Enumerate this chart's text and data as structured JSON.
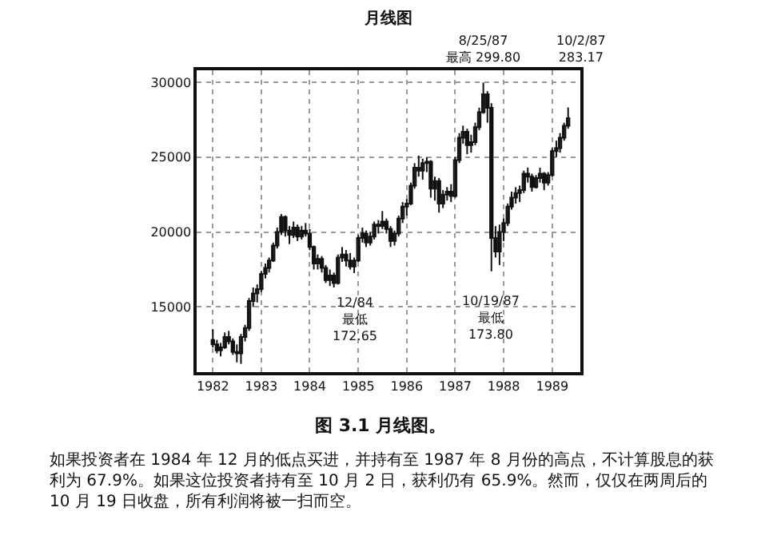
{
  "chart_data": {
    "type": "candlestick",
    "title": "月线图",
    "x": [
      "1982-01",
      "1982-02",
      "1982-03",
      "1982-04",
      "1982-05",
      "1982-06",
      "1982-07",
      "1982-08",
      "1982-09",
      "1982-10",
      "1982-11",
      "1982-12",
      "1983-01",
      "1983-02",
      "1983-03",
      "1983-04",
      "1983-05",
      "1983-06",
      "1983-07",
      "1983-08",
      "1983-09",
      "1983-10",
      "1983-11",
      "1983-12",
      "1984-01",
      "1984-02",
      "1984-03",
      "1984-04",
      "1984-05",
      "1984-06",
      "1984-07",
      "1984-08",
      "1984-09",
      "1984-10",
      "1984-11",
      "1984-12",
      "1985-01",
      "1985-02",
      "1985-03",
      "1985-04",
      "1985-05",
      "1985-06",
      "1985-07",
      "1985-08",
      "1985-09",
      "1985-10",
      "1985-11",
      "1985-12",
      "1986-01",
      "1986-02",
      "1986-03",
      "1986-04",
      "1986-05",
      "1986-06",
      "1986-07",
      "1986-08",
      "1986-09",
      "1986-10",
      "1986-11",
      "1986-12",
      "1987-01",
      "1987-02",
      "1987-03",
      "1987-04",
      "1987-05",
      "1987-06",
      "1987-07",
      "1987-08",
      "1987-09",
      "1987-10",
      "1987-11",
      "1987-12",
      "1988-01",
      "1988-02",
      "1988-03",
      "1988-04",
      "1988-05",
      "1988-06",
      "1988-07",
      "1988-08",
      "1988-09",
      "1988-10",
      "1988-11",
      "1988-12",
      "1989-01",
      "1989-02",
      "1989-03",
      "1989-04",
      "1989-05"
    ],
    "ohlc": [
      [
        12800,
        13500,
        12300,
        12500
      ],
      [
        12500,
        12800,
        11900,
        12100
      ],
      [
        12100,
        12600,
        11700,
        12300
      ],
      [
        12300,
        13300,
        12200,
        13000
      ],
      [
        13000,
        13400,
        12500,
        12700
      ],
      [
        12700,
        12900,
        11800,
        12000
      ],
      [
        12000,
        12500,
        11300,
        11900
      ],
      [
        11900,
        13200,
        11200,
        13000
      ],
      [
        13000,
        13800,
        12700,
        13600
      ],
      [
        13600,
        15600,
        13400,
        15400
      ],
      [
        15400,
        16300,
        15000,
        15900
      ],
      [
        15900,
        16500,
        15300,
        16200
      ],
      [
        16200,
        17400,
        16000,
        17200
      ],
      [
        17200,
        17900,
        16900,
        17600
      ],
      [
        17600,
        18300,
        17300,
        18100
      ],
      [
        18100,
        19300,
        18000,
        19100
      ],
      [
        19100,
        20300,
        18900,
        20000
      ],
      [
        20000,
        21200,
        19800,
        21000
      ],
      [
        21000,
        21100,
        19700,
        20100
      ],
      [
        20100,
        20400,
        19200,
        19800
      ],
      [
        19800,
        20700,
        19600,
        20300
      ],
      [
        20300,
        20500,
        19400,
        19700
      ],
      [
        19700,
        20400,
        19500,
        20100
      ],
      [
        20100,
        20600,
        19700,
        19900
      ],
      [
        19900,
        20200,
        18800,
        19000
      ],
      [
        19000,
        19100,
        17500,
        17900
      ],
      [
        17900,
        18500,
        17500,
        18200
      ],
      [
        18200,
        18400,
        17300,
        17600
      ],
      [
        17600,
        17800,
        16600,
        16800
      ],
      [
        16800,
        17500,
        16400,
        17100
      ],
      [
        17100,
        17300,
        16300,
        16600
      ],
      [
        16600,
        18500,
        16500,
        18300
      ],
      [
        18300,
        19000,
        18000,
        18500
      ],
      [
        18500,
        18800,
        17700,
        18100
      ],
      [
        18100,
        18600,
        17500,
        17700
      ],
      [
        17700,
        18300,
        17265,
        18100
      ],
      [
        18100,
        19800,
        18000,
        19600
      ],
      [
        19600,
        20300,
        19300,
        19900
      ],
      [
        19900,
        20100,
        19000,
        19300
      ],
      [
        19300,
        20000,
        19100,
        19700
      ],
      [
        19700,
        20700,
        19500,
        20500
      ],
      [
        20500,
        20800,
        19900,
        20400
      ],
      [
        20400,
        21400,
        20200,
        20700
      ],
      [
        20700,
        20900,
        19900,
        20200
      ],
      [
        20200,
        20400,
        19000,
        19400
      ],
      [
        19400,
        20100,
        19100,
        19900
      ],
      [
        19900,
        21100,
        19700,
        20900
      ],
      [
        20900,
        22000,
        20600,
        21700
      ],
      [
        21700,
        22200,
        21100,
        21900
      ],
      [
        21900,
        23300,
        21800,
        23100
      ],
      [
        23100,
        24600,
        22900,
        24300
      ],
      [
        24300,
        25100,
        23700,
        24100
      ],
      [
        24100,
        24900,
        23500,
        24600
      ],
      [
        24600,
        25000,
        24000,
        24700
      ],
      [
        24700,
        24800,
        22300,
        22900
      ],
      [
        22900,
        23700,
        22100,
        23400
      ],
      [
        23400,
        23600,
        21300,
        21900
      ],
      [
        21900,
        22800,
        21600,
        22500
      ],
      [
        22500,
        23000,
        22100,
        22700
      ],
      [
        22700,
        23200,
        22000,
        22400
      ],
      [
        22400,
        25000,
        22300,
        24800
      ],
      [
        24800,
        26600,
        24600,
        26300
      ],
      [
        26300,
        27100,
        25900,
        26700
      ],
      [
        26700,
        26900,
        25200,
        25800
      ],
      [
        25800,
        26500,
        25300,
        26000
      ],
      [
        26000,
        27300,
        25800,
        27000
      ],
      [
        27000,
        28300,
        26800,
        28000
      ],
      [
        28000,
        29980,
        27900,
        29200
      ],
      [
        29200,
        29400,
        27300,
        28300
      ],
      [
        28300,
        28600,
        17380,
        19600
      ],
      [
        19600,
        20400,
        18300,
        18700
      ],
      [
        18700,
        20500,
        17800,
        20000
      ],
      [
        20000,
        20900,
        19400,
        20600
      ],
      [
        20600,
        21900,
        20400,
        21700
      ],
      [
        21700,
        22700,
        21500,
        22300
      ],
      [
        22300,
        23000,
        21900,
        22600
      ],
      [
        22600,
        23100,
        22000,
        22800
      ],
      [
        22800,
        24100,
        22600,
        23900
      ],
      [
        23900,
        24300,
        23300,
        23700
      ],
      [
        23700,
        23900,
        22700,
        23000
      ],
      [
        23000,
        23800,
        22900,
        23600
      ],
      [
        23600,
        24300,
        23300,
        23900
      ],
      [
        23900,
        24000,
        22800,
        23300
      ],
      [
        23300,
        24000,
        23100,
        23800
      ],
      [
        23800,
        25600,
        23700,
        25400
      ],
      [
        25400,
        26100,
        25000,
        25600
      ],
      [
        25600,
        26600,
        25300,
        26300
      ],
      [
        26300,
        27300,
        26100,
        27100
      ],
      [
        27100,
        28317,
        26900,
        27600
      ]
    ],
    "color": "#111111",
    "xlim": [
      "1981-09",
      "1989-08"
    ],
    "xticks": [
      {
        "value": "1982-01",
        "label": "1982"
      },
      {
        "value": "1983-01",
        "label": "1983"
      },
      {
        "value": "1984-01",
        "label": "1984"
      },
      {
        "value": "1985-01",
        "label": "1985"
      },
      {
        "value": "1986-01",
        "label": "1986"
      },
      {
        "value": "1987-01",
        "label": "1987"
      },
      {
        "value": "1988-01",
        "label": "1988"
      },
      {
        "value": "1989-01",
        "label": "1989"
      }
    ],
    "ylim": [
      10650,
      30800
    ],
    "yticks": [
      15000,
      20000,
      25000,
      30000
    ],
    "grid": true,
    "line_style": "dotted",
    "annotations": [
      {
        "text": "8/25/87\n最高 299.80",
        "x": "1987-08",
        "y": 29980
      },
      "10/2/87\n283.17",
      {
        "text": "12/84\n最低\n172.65",
        "x": "1984-12",
        "y": 17265
      },
      {
        "text": "10/19/87\n最低\n173.80",
        "x": "1987-10",
        "y": 17380
      },
      "图 3.1 月线图。",
      "如果投资者在 1984 年 12 月的低点买进，并持有至 1987 年 8 月份的高点，不计算股息的获利为 67.9%。如果这位投资者持有至 10 月 2 日，获利仍有 65.9%。然而，仅仅在两周后的 10 月 19 日收盘，所有利润将被一扫而空。"
    ]
  }
}
